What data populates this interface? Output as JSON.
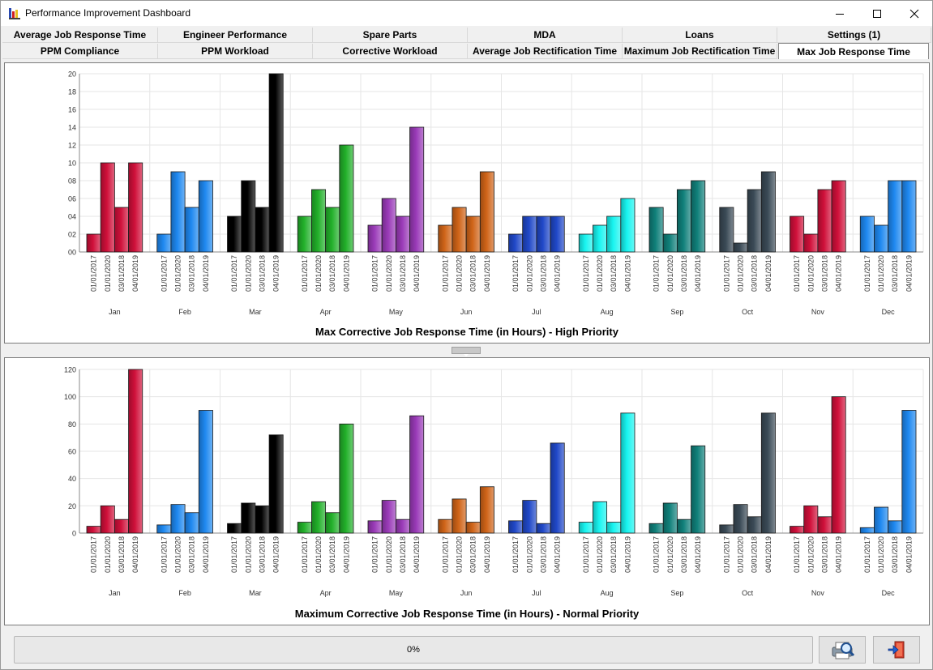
{
  "window": {
    "title": "Performance Improvement Dashboard"
  },
  "tabs_row1": [
    "Average Job Response Time",
    "Engineer Performance",
    "Spare Parts",
    "MDA",
    "Loans",
    "Settings (1)"
  ],
  "tabs_row2": [
    "PPM Compliance",
    "PPM Workload",
    "Corrective Workload",
    "Average Job Rectification Time",
    "Maximum Job Rectification Time",
    "Max Job Response Time"
  ],
  "active_tab": "Max Job Response Time",
  "progress": {
    "label": "0%",
    "value": 0
  },
  "chart_data": [
    {
      "type": "bar",
      "title": "Max Corrective Job Response Time (in Hours) - High Priority",
      "categories": [
        "Jan",
        "Feb",
        "Mar",
        "Apr",
        "May",
        "Jun",
        "Jul",
        "Aug",
        "Sep",
        "Oct",
        "Nov",
        "Dec"
      ],
      "series": [
        {
          "name": "01/01/2017",
          "values": [
            2,
            2,
            4,
            4,
            3,
            3,
            2,
            2,
            5,
            5,
            4,
            4
          ]
        },
        {
          "name": "01/01/2020",
          "values": [
            10,
            9,
            8,
            7,
            6,
            5,
            4,
            3,
            2,
            1,
            2,
            3
          ]
        },
        {
          "name": "03/01/2018",
          "values": [
            5,
            5,
            5,
            5,
            4,
            4,
            4,
            4,
            7,
            7,
            7,
            8
          ]
        },
        {
          "name": "04/01/2019",
          "values": [
            10,
            8,
            20,
            12,
            14,
            9,
            4,
            6,
            8,
            9,
            8,
            8
          ]
        }
      ],
      "yticks": [
        "00",
        "02",
        "04",
        "06",
        "08",
        "10",
        "12",
        "14",
        "16",
        "18",
        "20"
      ],
      "ylim": [
        0,
        20
      ],
      "grid": true,
      "month_colors": [
        "#d0103a",
        "#1e88f0",
        "#000000",
        "#22b02a",
        "#9a3ab8",
        "#d06418",
        "#2048c8",
        "#18f4f0",
        "#10807a",
        "#3a4a56",
        "#d0103a",
        "#1e88f0"
      ]
    },
    {
      "type": "bar",
      "title": "Maximum Corrective Job Response Time (in Hours) - Normal Priority",
      "categories": [
        "Jan",
        "Feb",
        "Mar",
        "Apr",
        "May",
        "Jun",
        "Jul",
        "Aug",
        "Sep",
        "Oct",
        "Nov",
        "Dec"
      ],
      "series": [
        {
          "name": "01/01/2017",
          "values": [
            5,
            6,
            7,
            8,
            9,
            10,
            9,
            8,
            7,
            6,
            5,
            4
          ]
        },
        {
          "name": "01/01/2020",
          "values": [
            20,
            21,
            22,
            23,
            24,
            25,
            24,
            23,
            22,
            21,
            20,
            19
          ]
        },
        {
          "name": "03/01/2018",
          "values": [
            10,
            15,
            20,
            15,
            10,
            8,
            7,
            8,
            10,
            12,
            12,
            9
          ]
        },
        {
          "name": "04/01/2019",
          "values": [
            120,
            90,
            72,
            80,
            86,
            34,
            66,
            88,
            64,
            88,
            100,
            90
          ]
        }
      ],
      "yticks": [
        "0",
        "20",
        "40",
        "60",
        "80",
        "100",
        "120"
      ],
      "ylim": [
        0,
        120
      ],
      "grid": true,
      "month_colors": [
        "#d0103a",
        "#1e88f0",
        "#000000",
        "#22b02a",
        "#9a3ab8",
        "#d06418",
        "#2048c8",
        "#18f4f0",
        "#10807a",
        "#3a4a56",
        "#d0103a",
        "#1e88f0"
      ]
    }
  ]
}
